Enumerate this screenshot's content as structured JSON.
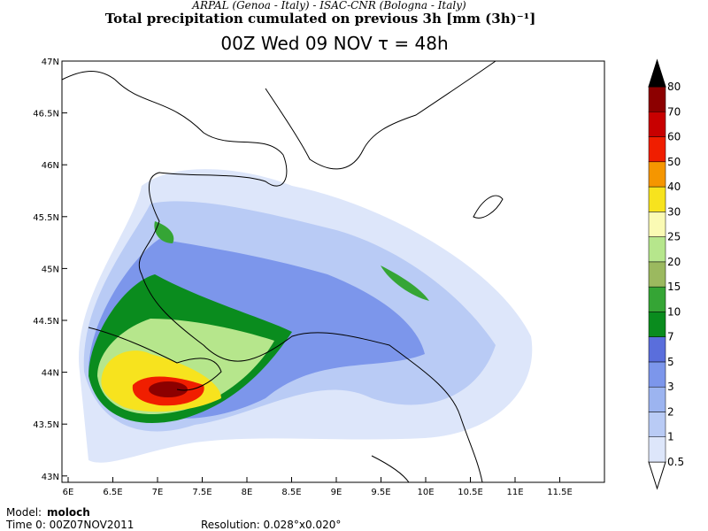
{
  "header": {
    "credit": "ARPAL (Genoa - Italy)  -  ISAC-CNR (Bologna - Italy)",
    "title": "Total precipitation cumulated on previous 3h [mm (3h)⁻¹]",
    "subtitle": "00Z Wed 09 NOV  τ = 48h"
  },
  "map": {
    "lon_labels": [
      "6E",
      "6.5E",
      "7E",
      "7.5E",
      "8E",
      "8.5E",
      "9E",
      "9.5E",
      "10E",
      "10.5E",
      "11E",
      "11.5E"
    ],
    "lat_labels": [
      "47N",
      "46.5N",
      "46N",
      "45.5N",
      "45N",
      "44.5N",
      "44N",
      "43.5N",
      "43N"
    ]
  },
  "legend": {
    "levels": [
      {
        "label": "0.5",
        "color": "#dde6fa"
      },
      {
        "label": "1",
        "color": "#b9cbf5"
      },
      {
        "label": "2",
        "color": "#9cb4f0"
      },
      {
        "label": "3",
        "color": "#7c96eb"
      },
      {
        "label": "5",
        "color": "#5a6edc"
      },
      {
        "label": "7",
        "color": "#0a8c1e"
      },
      {
        "label": "10",
        "color": "#35a535"
      },
      {
        "label": "15",
        "color": "#9bb95f"
      },
      {
        "label": "20",
        "color": "#b6e68c"
      },
      {
        "label": "25",
        "color": "#fafab4"
      },
      {
        "label": "30",
        "color": "#f7e31e"
      },
      {
        "label": "40",
        "color": "#f59600"
      },
      {
        "label": "50",
        "color": "#f01e00"
      },
      {
        "label": "60",
        "color": "#c80000"
      },
      {
        "label": "70",
        "color": "#8c0000"
      },
      {
        "label": "80",
        "color": "#000000"
      }
    ]
  },
  "footer": {
    "model_label": "Model:",
    "model": "moloch",
    "time": "Time 0: 00Z07NOV2011",
    "resolution": "Resolution: 0.028°x0.020°"
  }
}
